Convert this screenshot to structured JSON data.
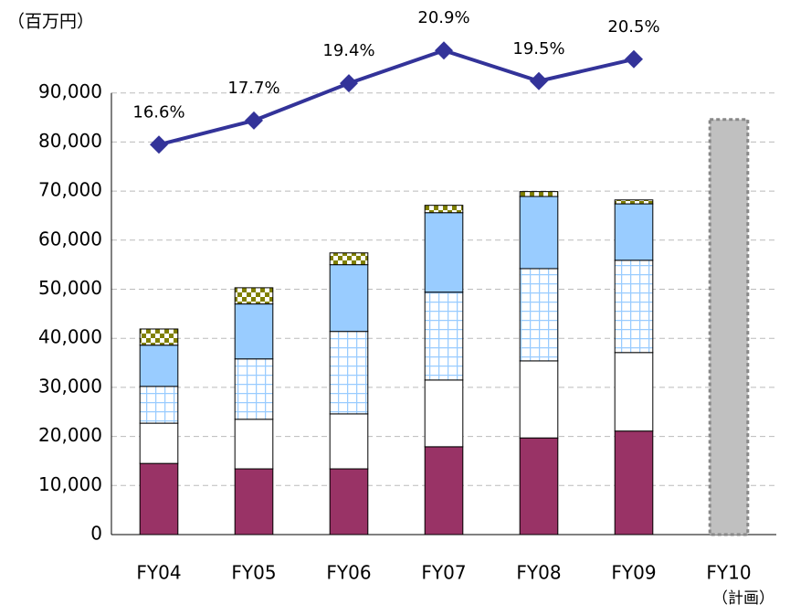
{
  "chart_data": {
    "type": "bar",
    "y_axis_label": "（百万円）",
    "annotation": "（計画）",
    "categories": [
      "FY04",
      "FY05",
      "FY06",
      "FY07",
      "FY08",
      "FY09",
      "FY10"
    ],
    "ylim": [
      0,
      100000
    ],
    "yticks": [
      0,
      {
        "value": 10000,
        "label": "10,000"
      },
      {
        "value": 20000,
        "label": "20,000"
      },
      {
        "value": 30000,
        "label": "30,000"
      },
      {
        "value": 40000,
        "label": "40,000"
      },
      {
        "value": 50000,
        "label": "50,000"
      },
      {
        "value": 60000,
        "label": "60,000"
      },
      {
        "value": 70000,
        "label": "70,000"
      },
      {
        "value": 80000,
        "label": "80,000"
      },
      {
        "value": 90000,
        "label": "90,000"
      }
    ],
    "y2lim": [
      -1.2,
      21.2
    ],
    "grid": true,
    "series": [
      {
        "type": "bar",
        "color": "#993366",
        "values": [
          14500,
          13400,
          13400,
          17900,
          19700,
          21100,
          null
        ]
      },
      {
        "type": "bar",
        "color": "#ffffff",
        "values": [
          8200,
          10100,
          11200,
          13600,
          15700,
          16000,
          null
        ]
      },
      {
        "type": "bar",
        "color": "#99ccff",
        "pattern": "grid",
        "values": [
          7500,
          12300,
          16800,
          17900,
          18800,
          18800,
          null
        ]
      },
      {
        "type": "bar",
        "color": "#99ccff",
        "values": [
          8400,
          11200,
          13600,
          16200,
          14700,
          11500,
          null
        ]
      },
      {
        "type": "bar",
        "color": "#808000",
        "pattern": "checker",
        "values": [
          3300,
          3300,
          2400,
          1500,
          1000,
          800,
          null
        ]
      },
      {
        "type": "bar",
        "color": "#c0c0c0",
        "border": "dashed",
        "values": [
          null,
          null,
          null,
          null,
          null,
          null,
          84600
        ]
      },
      {
        "type": "line",
        "axis": "y2",
        "color": "#333399",
        "values": [
          16.6,
          17.7,
          19.4,
          20.9,
          19.5,
          20.5,
          null
        ],
        "value_labels": [
          "16.6%",
          "17.7%",
          "19.4%",
          "20.9%",
          "19.5%",
          "20.5%",
          null
        ]
      }
    ]
  }
}
